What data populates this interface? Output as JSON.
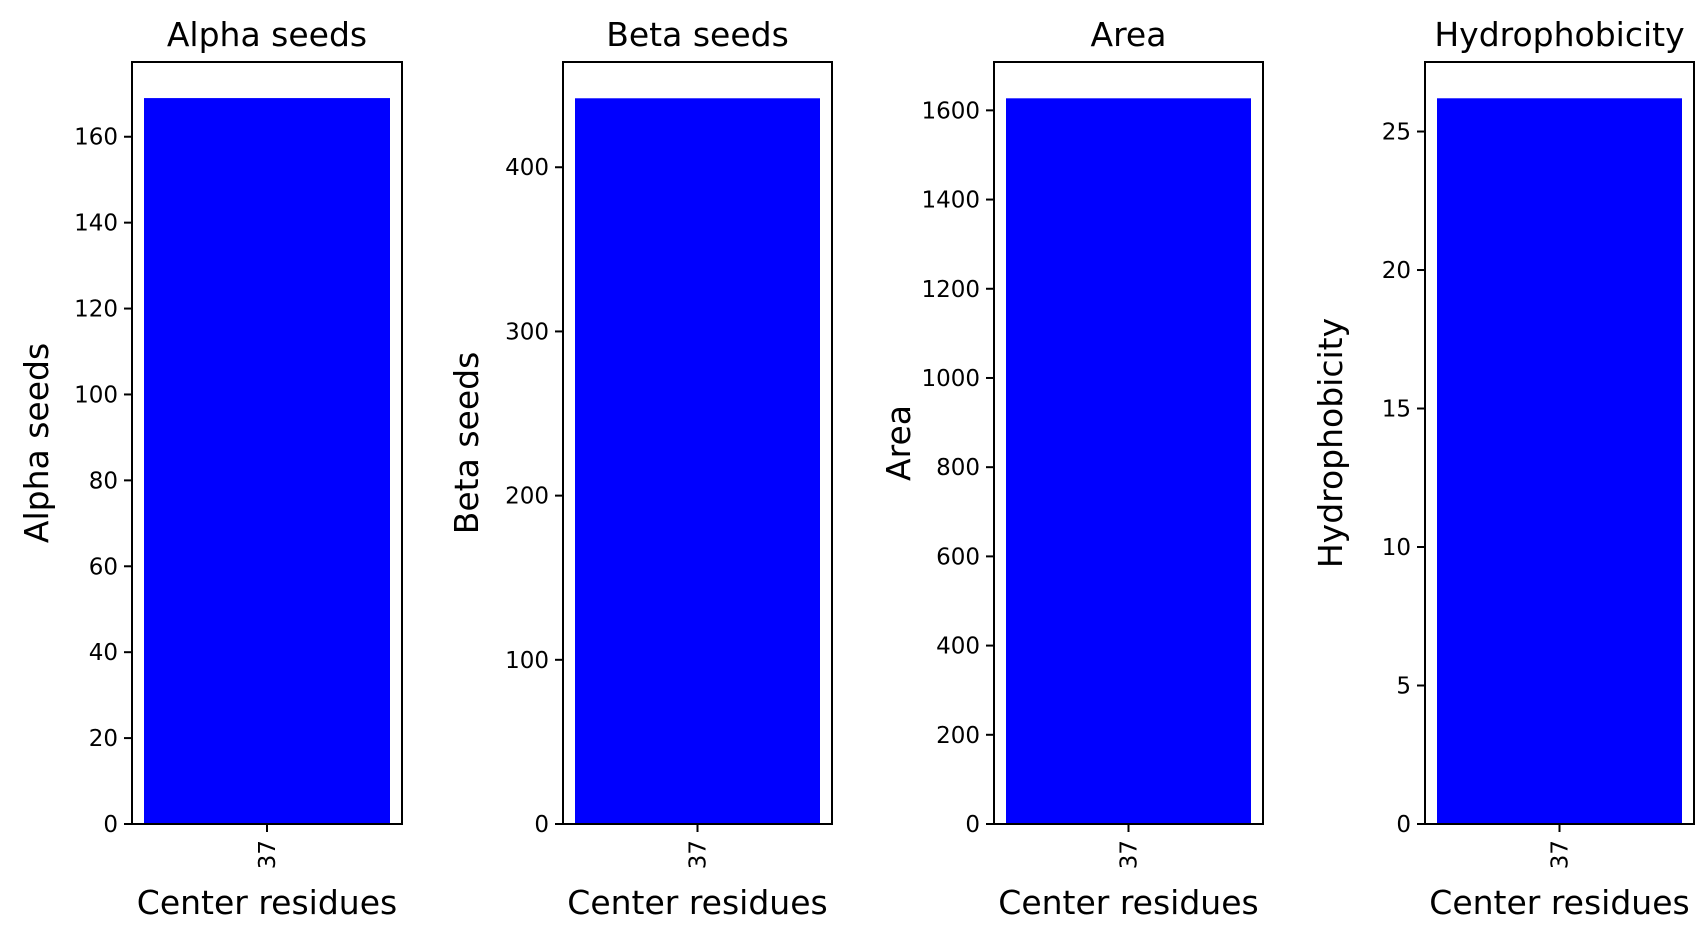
{
  "chart_data": [
    {
      "type": "bar",
      "title": "Alpha seeds",
      "xlabel": "Center residues",
      "ylabel": "Alpha seeds",
      "categories": [
        "37"
      ],
      "values": [
        169
      ],
      "ylim": [
        0,
        177.4
      ],
      "yticks": [
        0,
        20,
        40,
        60,
        80,
        100,
        120,
        140,
        160
      ],
      "bar_color": "#0000ff",
      "grid": false
    },
    {
      "type": "bar",
      "title": "Beta seeds",
      "xlabel": "Center residues",
      "ylabel": "Beta seeds",
      "categories": [
        "37"
      ],
      "values": [
        442
      ],
      "ylim": [
        0,
        464.1
      ],
      "yticks": [
        0,
        100,
        200,
        300,
        400
      ],
      "bar_color": "#0000ff",
      "grid": false
    },
    {
      "type": "bar",
      "title": "Area",
      "xlabel": "Center residues",
      "ylabel": "Area",
      "categories": [
        "37"
      ],
      "values": [
        1627
      ],
      "ylim": [
        0,
        1708.4
      ],
      "yticks": [
        0,
        200,
        400,
        600,
        800,
        1000,
        1200,
        1400,
        1600
      ],
      "bar_color": "#0000ff",
      "grid": false
    },
    {
      "type": "bar",
      "title": "Hydrophobicity",
      "xlabel": "Center residues",
      "ylabel": "Hydrophobicity",
      "categories": [
        "37"
      ],
      "values": [
        26.2
      ],
      "ylim": [
        0,
        27.51
      ],
      "yticks": [
        0,
        5,
        10,
        15,
        20,
        25
      ],
      "bar_color": "#0000ff",
      "grid": false
    }
  ]
}
